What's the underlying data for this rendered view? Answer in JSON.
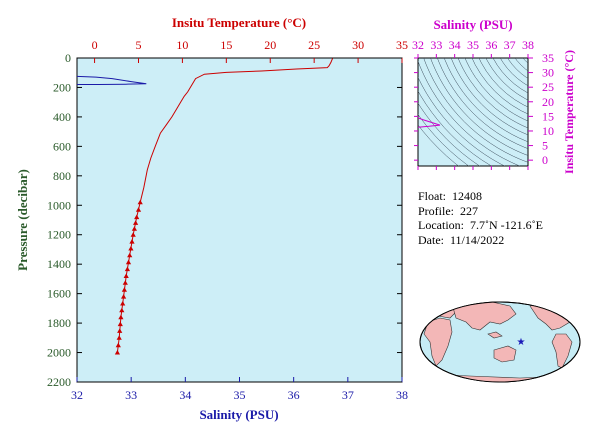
{
  "chart_data": [
    {
      "type": "line",
      "x_top": {
        "label": "Insitu Temperature (°C)",
        "ticks": [
          "0",
          "5",
          "10",
          "15",
          "20",
          "25",
          "30",
          "35"
        ],
        "range": [
          -2,
          35
        ],
        "color": "#cc0000"
      },
      "x_bottom": {
        "label": "Salinity (PSU)",
        "ticks": [
          "32",
          "33",
          "34",
          "35",
          "36",
          "37",
          "38"
        ],
        "range": [
          32,
          38
        ],
        "color": "#1a1aa8"
      },
      "y": {
        "label": "Pressure (decibar)",
        "ticks": [
          "0",
          "200",
          "400",
          "600",
          "800",
          "1000",
          "1200",
          "1400",
          "1600",
          "1800",
          "2000",
          "2200"
        ],
        "range": [
          0,
          2200
        ],
        "inverted": true,
        "color": "#2a5a2a"
      },
      "series": [
        {
          "color": "#cc0000",
          "axis": "temperature",
          "points": [
            [
              27.1,
              2
            ],
            [
              26.9,
              30
            ],
            [
              26.7,
              52
            ],
            [
              26.5,
              65
            ],
            [
              23,
              75
            ],
            [
              19,
              88
            ],
            [
              15,
              98
            ],
            [
              12.5,
              110
            ],
            [
              11.5,
              140
            ],
            [
              10.9,
              200
            ],
            [
              10.6,
              230
            ],
            [
              10.2,
              260
            ],
            [
              9.8,
              300
            ],
            [
              9.3,
              350
            ],
            [
              8.8,
              400
            ],
            [
              8.1,
              460
            ],
            [
              7.5,
              510
            ],
            [
              6.9,
              600
            ],
            [
              6.4,
              680
            ],
            [
              6.0,
              760
            ],
            [
              5.6,
              880
            ],
            [
              5.2,
              980
            ],
            [
              4.8,
              1080
            ],
            [
              4.4,
              1200
            ],
            [
              4.0,
              1340
            ],
            [
              3.6,
              1480
            ],
            [
              3.3,
              1620
            ],
            [
              3.0,
              1760
            ],
            [
              2.8,
              1900
            ],
            [
              2.6,
              2000
            ]
          ],
          "markers_from_pressure": 980
        },
        {
          "color": "#1a1aa8",
          "axis": "salinity",
          "points": [
            [
              32.0,
              125
            ],
            [
              32.35,
              130
            ],
            [
              32.65,
              140
            ],
            [
              33.0,
              160
            ],
            [
              33.28,
              175
            ],
            [
              32.9,
              178
            ],
            [
              32.4,
              180
            ],
            [
              32.0,
              180
            ]
          ]
        }
      ]
    },
    {
      "type": "line",
      "title": "Salinity (PSU)",
      "x": {
        "ticks": [
          "32",
          "33",
          "34",
          "35",
          "36",
          "37",
          "38"
        ],
        "range": [
          32,
          38
        ],
        "color": "#cc00cc"
      },
      "y": {
        "label": "Insitu Temperature (°C)",
        "ticks": [
          "0",
          "5",
          "10",
          "15",
          "20",
          "25",
          "30",
          "35"
        ],
        "range": [
          -2,
          35
        ],
        "color": "#cc00cc"
      },
      "contours": "isopycnals",
      "series": [
        {
          "color": "#cc00cc",
          "points": [
            [
              32.0,
              14.5
            ],
            [
              32.3,
              13.8
            ],
            [
              32.6,
              13.2
            ],
            [
              33.2,
              12.0
            ],
            [
              32.6,
              11.6
            ],
            [
              32.0,
              11.3
            ]
          ]
        }
      ]
    }
  ],
  "float_info": [
    {
      "label": "Float:",
      "value": "12408"
    },
    {
      "label": "Profile:",
      "value": "227"
    },
    {
      "label": "Location:",
      "value": "7.7˚N  -121.6˚E"
    },
    {
      "label": "Date:",
      "value": "11/14/2022"
    }
  ],
  "map": {
    "ocean_color": "#c6ecf5",
    "land_color": "#f3b7b7",
    "marker_color": "#1a1ab8"
  }
}
